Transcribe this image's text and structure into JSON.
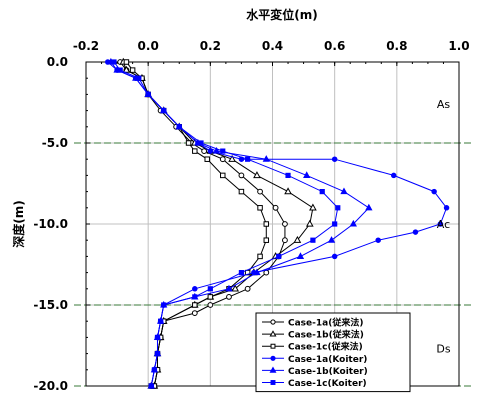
{
  "chart_data": {
    "type": "line",
    "title": "水平変位(m)",
    "xlabel": "水平変位(m)",
    "ylabel": "深度(m)",
    "xlim": [
      -0.2,
      1.0
    ],
    "ylim": [
      -20.0,
      0.0
    ],
    "x_ticks": [
      -0.2,
      0.0,
      0.2,
      0.4,
      0.6,
      0.8,
      1.0
    ],
    "x_tick_labels": [
      "-0.2",
      "0.0",
      "0.2",
      "0.4",
      "0.6",
      "0.8",
      "1.0"
    ],
    "y_ticks": [
      0.0,
      -5.0,
      -10.0,
      -15.0,
      -20.0
    ],
    "y_tick_labels": [
      "0.0",
      "-5.0",
      "-10.0",
      "-15.0",
      "-20.0"
    ],
    "grid": true,
    "layer_boundaries": [
      -5.0,
      -15.0,
      -20.0
    ],
    "layer_boundary_color": "#3a7a3a",
    "zones": [
      {
        "label": "As",
        "x": 0.95,
        "y": -2.6
      },
      {
        "label": "Ac",
        "x": 0.95,
        "y": -10.0
      },
      {
        "label": "Ds",
        "x": 0.95,
        "y": -17.7
      }
    ],
    "legend_placement": "bottom-right",
    "series": [
      {
        "name": "Case-1a(従来法)",
        "color": "#000000",
        "marker": "circle",
        "filled": false,
        "x": [
          -0.09,
          -0.07,
          -0.02,
          0.0,
          0.04,
          0.09,
          0.14,
          0.18,
          0.24,
          0.3,
          0.36,
          0.41,
          0.44,
          0.44,
          0.42,
          0.38,
          0.32,
          0.26,
          0.2,
          0.15,
          0.05,
          0.04,
          0.03,
          0.03,
          0.02,
          0.01
        ],
        "y": [
          0.0,
          -0.5,
          -1.0,
          -2.0,
          -3.0,
          -4.0,
          -5.0,
          -5.5,
          -6.0,
          -7.0,
          -8.0,
          -9.0,
          -10.0,
          -11.0,
          -12.0,
          -13.0,
          -14.0,
          -14.5,
          -15.0,
          -15.5,
          -16.0,
          -17.0,
          -18.0,
          -19.0,
          -20.0,
          -20.0
        ]
      },
      {
        "name": "Case-1b(従来法)",
        "color": "#000000",
        "marker": "triangle",
        "filled": false,
        "x": [
          -0.08,
          -0.07,
          -0.02,
          0.0,
          0.05,
          0.1,
          0.15,
          0.2,
          0.27,
          0.35,
          0.45,
          0.53,
          0.52,
          0.48,
          0.41,
          0.34,
          0.28,
          0.2,
          0.15,
          0.05,
          0.04,
          0.03,
          0.03,
          0.02,
          0.01
        ],
        "y": [
          0.0,
          -0.5,
          -1.0,
          -2.0,
          -3.0,
          -4.0,
          -5.0,
          -5.5,
          -6.0,
          -7.0,
          -8.0,
          -9.0,
          -10.0,
          -11.0,
          -12.0,
          -13.0,
          -14.0,
          -14.5,
          -15.0,
          -16.0,
          -17.0,
          -18.0,
          -19.0,
          -20.0,
          -20.0
        ]
      },
      {
        "name": "Case-1c(従来法)",
        "color": "#000000",
        "marker": "square",
        "filled": false,
        "x": [
          -0.07,
          -0.05,
          -0.02,
          0.0,
          0.05,
          0.1,
          0.13,
          0.15,
          0.19,
          0.24,
          0.3,
          0.36,
          0.38,
          0.38,
          0.36,
          0.32,
          0.26,
          0.2,
          0.15,
          0.05,
          0.04,
          0.03,
          0.03,
          0.02,
          0.01
        ],
        "y": [
          0.0,
          -0.5,
          -1.0,
          -2.0,
          -3.0,
          -4.0,
          -5.0,
          -5.5,
          -6.0,
          -7.0,
          -8.0,
          -9.0,
          -10.0,
          -11.0,
          -12.0,
          -13.0,
          -14.0,
          -14.5,
          -15.0,
          -16.0,
          -17.0,
          -18.0,
          -19.0,
          -20.0,
          -20.0
        ]
      },
      {
        "name": "Case-1a(Koiter)",
        "color": "#0000ff",
        "marker": "circle",
        "filled": true,
        "x": [
          -0.13,
          -0.1,
          -0.04,
          0.0,
          0.05,
          0.1,
          0.16,
          0.2,
          0.3,
          0.6,
          0.79,
          0.92,
          0.96,
          0.94,
          0.86,
          0.74,
          0.6,
          0.34,
          0.15,
          0.05,
          0.04,
          0.03,
          0.03,
          0.02,
          0.01
        ],
        "y": [
          0.0,
          -0.5,
          -1.0,
          -2.0,
          -3.0,
          -4.0,
          -5.0,
          -5.5,
          -6.0,
          -6.0,
          -7.0,
          -8.0,
          -9.0,
          -10.0,
          -10.5,
          -11.0,
          -12.0,
          -13.0,
          -14.0,
          -15.0,
          -16.0,
          -17.0,
          -18.0,
          -19.0,
          -20.0
        ]
      },
      {
        "name": "Case-1b(Koiter)",
        "color": "#0000ff",
        "marker": "triangle",
        "filled": true,
        "x": [
          -0.12,
          -0.1,
          -0.04,
          0.0,
          0.05,
          0.1,
          0.16,
          0.22,
          0.38,
          0.51,
          0.63,
          0.71,
          0.66,
          0.59,
          0.49,
          0.35,
          0.26,
          0.15,
          0.05,
          0.04,
          0.03,
          0.03,
          0.02,
          0.01
        ],
        "y": [
          0.0,
          -0.5,
          -1.0,
          -2.0,
          -3.0,
          -4.0,
          -5.0,
          -5.5,
          -6.0,
          -7.0,
          -8.0,
          -9.0,
          -10.0,
          -11.0,
          -12.0,
          -13.0,
          -14.0,
          -14.5,
          -15.0,
          -16.0,
          -17.0,
          -18.0,
          -19.0,
          -20.0
        ]
      },
      {
        "name": "Case-1c(Koiter)",
        "color": "#0000ff",
        "marker": "square",
        "filled": true,
        "x": [
          -0.11,
          -0.09,
          -0.03,
          0.0,
          0.05,
          0.1,
          0.17,
          0.24,
          0.32,
          0.45,
          0.56,
          0.61,
          0.6,
          0.53,
          0.42,
          0.3,
          0.2,
          0.15,
          0.05,
          0.04,
          0.03,
          0.03,
          0.02,
          0.01
        ],
        "y": [
          0.0,
          -0.5,
          -1.0,
          -2.0,
          -3.0,
          -4.0,
          -5.0,
          -5.5,
          -6.0,
          -7.0,
          -8.0,
          -9.0,
          -10.0,
          -11.0,
          -12.0,
          -13.0,
          -14.0,
          -14.5,
          -15.0,
          -16.0,
          -17.0,
          -18.0,
          -19.0,
          -20.0
        ]
      }
    ]
  }
}
